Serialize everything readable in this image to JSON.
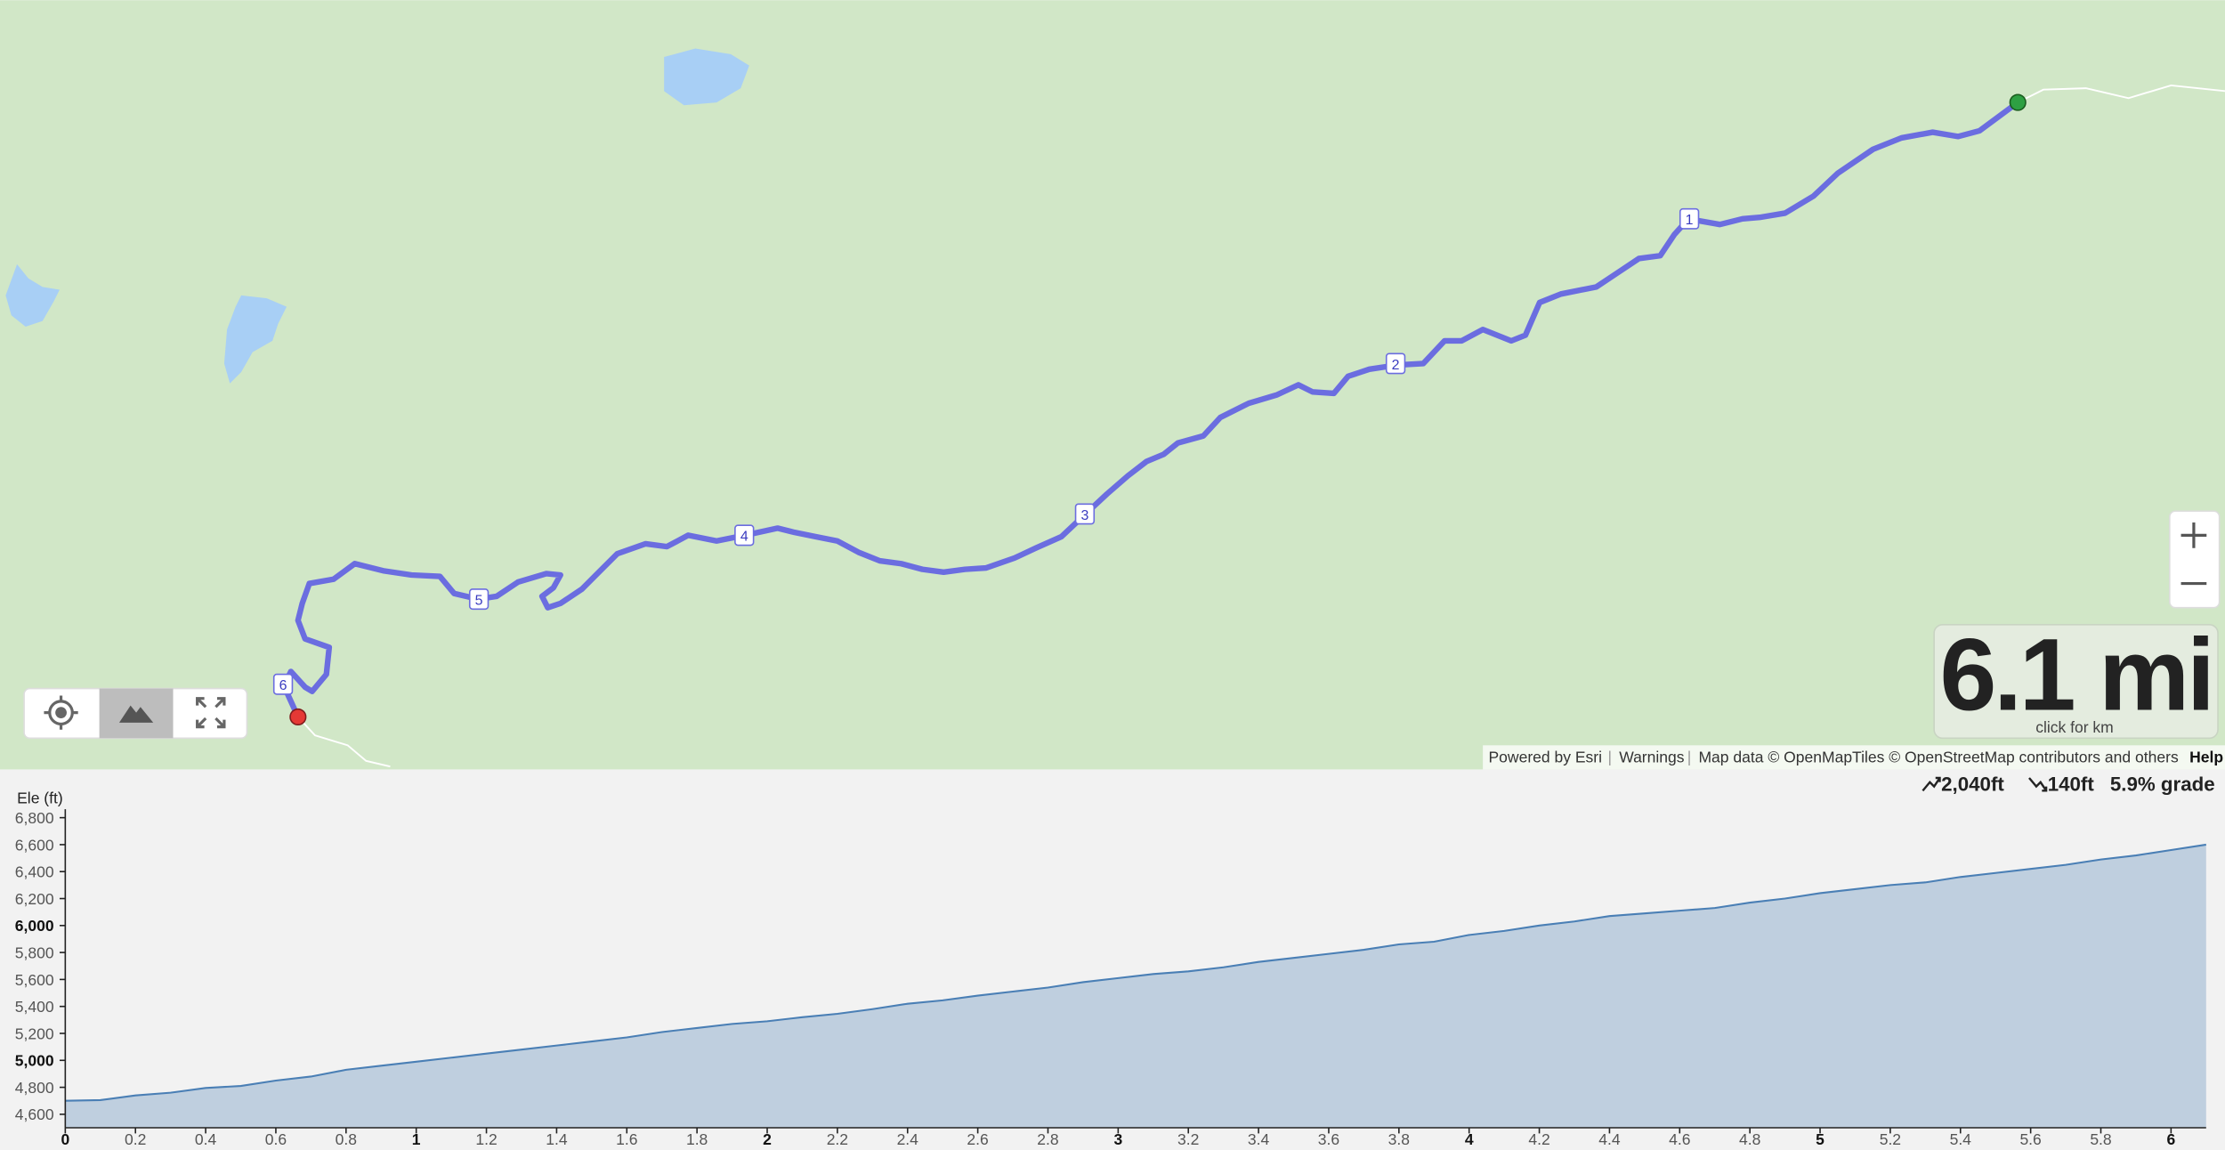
{
  "map": {
    "mile_markers": [
      "1",
      "2",
      "3",
      "4",
      "5",
      "6"
    ],
    "distance": "6.1 mi",
    "distance_hint": "click for km",
    "attribution": [
      "Powered by Esri",
      "Warnings",
      "Map data © OpenMapTiles © OpenStreetMap contributors and others"
    ],
    "separator": "|",
    "help": "Help"
  },
  "stats": {
    "gain": "2,040ft",
    "loss": "140ft",
    "grade": "5.9% grade"
  },
  "chart_data": {
    "type": "area",
    "y_label": "Ele (ft)",
    "x": [
      0,
      0.1,
      0.2,
      0.3,
      0.4,
      0.5,
      0.6,
      0.7,
      0.8,
      0.9,
      1.0,
      1.1,
      1.2,
      1.3,
      1.4,
      1.5,
      1.6,
      1.7,
      1.8,
      1.9,
      2.0,
      2.1,
      2.2,
      2.3,
      2.4,
      2.5,
      2.6,
      2.7,
      2.8,
      2.9,
      3.0,
      3.1,
      3.2,
      3.3,
      3.4,
      3.5,
      3.6,
      3.7,
      3.8,
      3.9,
      4.0,
      4.1,
      4.2,
      4.3,
      4.4,
      4.5,
      4.6,
      4.7,
      4.8,
      4.9,
      5.0,
      5.1,
      5.2,
      5.3,
      5.4,
      5.5,
      5.6,
      5.7,
      5.8,
      5.9,
      6.0,
      6.1
    ],
    "values": [
      4700,
      4705,
      4740,
      4760,
      4795,
      4810,
      4850,
      4880,
      4930,
      4960,
      4990,
      5020,
      5050,
      5080,
      5110,
      5140,
      5170,
      5210,
      5240,
      5270,
      5290,
      5320,
      5345,
      5380,
      5420,
      5445,
      5480,
      5510,
      5540,
      5580,
      5610,
      5640,
      5660,
      5690,
      5730,
      5760,
      5790,
      5820,
      5860,
      5880,
      5930,
      5960,
      6000,
      6030,
      6070,
      6090,
      6110,
      6130,
      6170,
      6200,
      6240,
      6270,
      6300,
      6320,
      6360,
      6390,
      6420,
      6450,
      6490,
      6520,
      6560,
      6600
    ],
    "color": "#4a7fb5",
    "fill": "#bfcfdf",
    "xlim": [
      0,
      6.1
    ],
    "ylim": [
      4500,
      6800
    ],
    "xticks": [
      0,
      0.2,
      0.4,
      0.6,
      0.8,
      1,
      1.2,
      1.4,
      1.6,
      1.8,
      2,
      2.2,
      2.4,
      2.6,
      2.8,
      3,
      3.2,
      3.4,
      3.6,
      3.8,
      4,
      4.2,
      4.4,
      4.6,
      4.8,
      5,
      5.2,
      5.4,
      5.6,
      5.8,
      6
    ],
    "yticks": [
      {
        "value": 4600,
        "label": "4,600"
      },
      {
        "value": 4800,
        "label": "4,800"
      },
      {
        "value": 5000,
        "label": "5,000"
      },
      {
        "value": 5200,
        "label": "5,200"
      },
      {
        "value": 5400,
        "label": "5,400"
      },
      {
        "value": 5600,
        "label": "5,600"
      },
      {
        "value": 5800,
        "label": "5,800"
      },
      {
        "value": 6000,
        "label": "6,000"
      },
      {
        "value": 6200,
        "label": "6,200"
      },
      {
        "value": 6400,
        "label": "6,400"
      },
      {
        "value": 6600,
        "label": "6,600"
      },
      {
        "value": 6800,
        "label": "6,800"
      }
    ]
  }
}
